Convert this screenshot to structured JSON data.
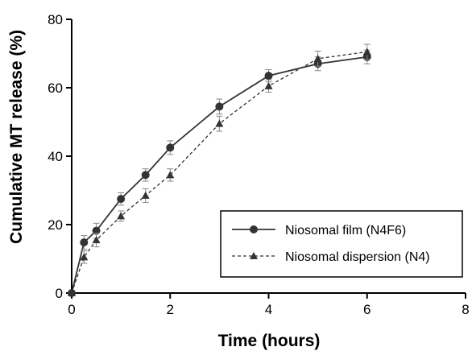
{
  "chart_data": {
    "type": "line",
    "title": "",
    "xlabel": "Time (hours)",
    "ylabel": "Cumulative MT release (%)",
    "xlim": [
      0,
      8
    ],
    "ylim": [
      0,
      80
    ],
    "xticks": [
      0,
      2,
      4,
      6,
      8
    ],
    "yticks": [
      0,
      20,
      40,
      60,
      80
    ],
    "xtick_labels": [
      "0",
      "2",
      "4",
      "6",
      "8"
    ],
    "ytick_labels": [
      "0",
      "20",
      "40",
      "60",
      "80"
    ],
    "grid": false,
    "legend_position": "bottom-right",
    "x": [
      0,
      0.25,
      0.5,
      1,
      1.5,
      2,
      3,
      4,
      5,
      6
    ],
    "series": [
      {
        "name": "Niosomal film (N4F6)",
        "marker": "circle",
        "line": "solid",
        "color": "#333333",
        "values": [
          0,
          14.8,
          18.2,
          27.5,
          34.5,
          42.5,
          54.5,
          63.5,
          67.0,
          69.0
        ],
        "errors": [
          0,
          2.0,
          2.2,
          1.8,
          1.8,
          2.0,
          2.2,
          1.8,
          2.0,
          2.0
        ]
      },
      {
        "name": "Niosomal dispersion (N4)",
        "marker": "triangle",
        "line": "dashed",
        "color": "#333333",
        "values": [
          0,
          10.5,
          15.5,
          22.5,
          28.5,
          34.5,
          49.5,
          60.5,
          68.5,
          70.5
        ],
        "errors": [
          0,
          1.8,
          2.0,
          1.5,
          2.0,
          1.8,
          2.2,
          1.8,
          2.2,
          2.2
        ]
      }
    ]
  }
}
